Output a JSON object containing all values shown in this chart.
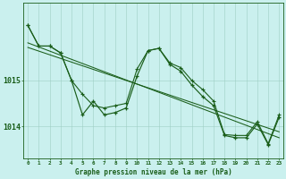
{
  "title": "Graphe pression niveau de la mer (hPa)",
  "bg_color": "#caf0ee",
  "line_color": "#1a5e1a",
  "grid_color": "#9ecec4",
  "x_ticks": [
    0,
    1,
    2,
    3,
    4,
    5,
    6,
    7,
    8,
    9,
    10,
    11,
    12,
    13,
    14,
    15,
    16,
    17,
    18,
    19,
    20,
    21,
    22,
    23
  ],
  "y_ticks": [
    1014,
    1015
  ],
  "ylim": [
    1013.3,
    1016.7
  ],
  "xlim": [
    -0.4,
    23.4
  ],
  "y_zigzag1": [
    1016.2,
    1015.75,
    1015.75,
    1015.6,
    1015.0,
    1014.25,
    1014.55,
    1014.25,
    1014.3,
    1014.4,
    1015.1,
    1015.65,
    1015.7,
    1015.35,
    1015.2,
    1014.9,
    1014.65,
    1014.45,
    1013.8,
    1013.75,
    1013.75,
    1014.05,
    1013.6,
    1014.2
  ],
  "y_zigzag2": [
    1016.2,
    1015.75,
    1015.75,
    1015.6,
    1015.0,
    1014.7,
    1014.45,
    1014.4,
    1014.45,
    1014.5,
    1015.25,
    1015.65,
    1015.7,
    1015.38,
    1015.28,
    1015.0,
    1014.8,
    1014.55,
    1013.82,
    1013.8,
    1013.8,
    1014.1,
    1013.62,
    1014.25
  ],
  "y_line1": [
    1015.82,
    1015.73,
    1015.64,
    1015.55,
    1015.46,
    1015.37,
    1015.28,
    1015.19,
    1015.1,
    1015.01,
    1014.92,
    1014.83,
    1014.74,
    1014.65,
    1014.56,
    1014.47,
    1014.38,
    1014.29,
    1014.2,
    1014.11,
    1014.02,
    1013.93,
    1013.84,
    1013.75
  ],
  "y_line2": [
    1015.72,
    1015.64,
    1015.56,
    1015.48,
    1015.4,
    1015.32,
    1015.24,
    1015.16,
    1015.08,
    1015.0,
    1014.92,
    1014.84,
    1014.76,
    1014.68,
    1014.6,
    1014.52,
    1014.44,
    1014.36,
    1014.28,
    1014.2,
    1014.12,
    1014.04,
    1013.96,
    1013.88
  ]
}
